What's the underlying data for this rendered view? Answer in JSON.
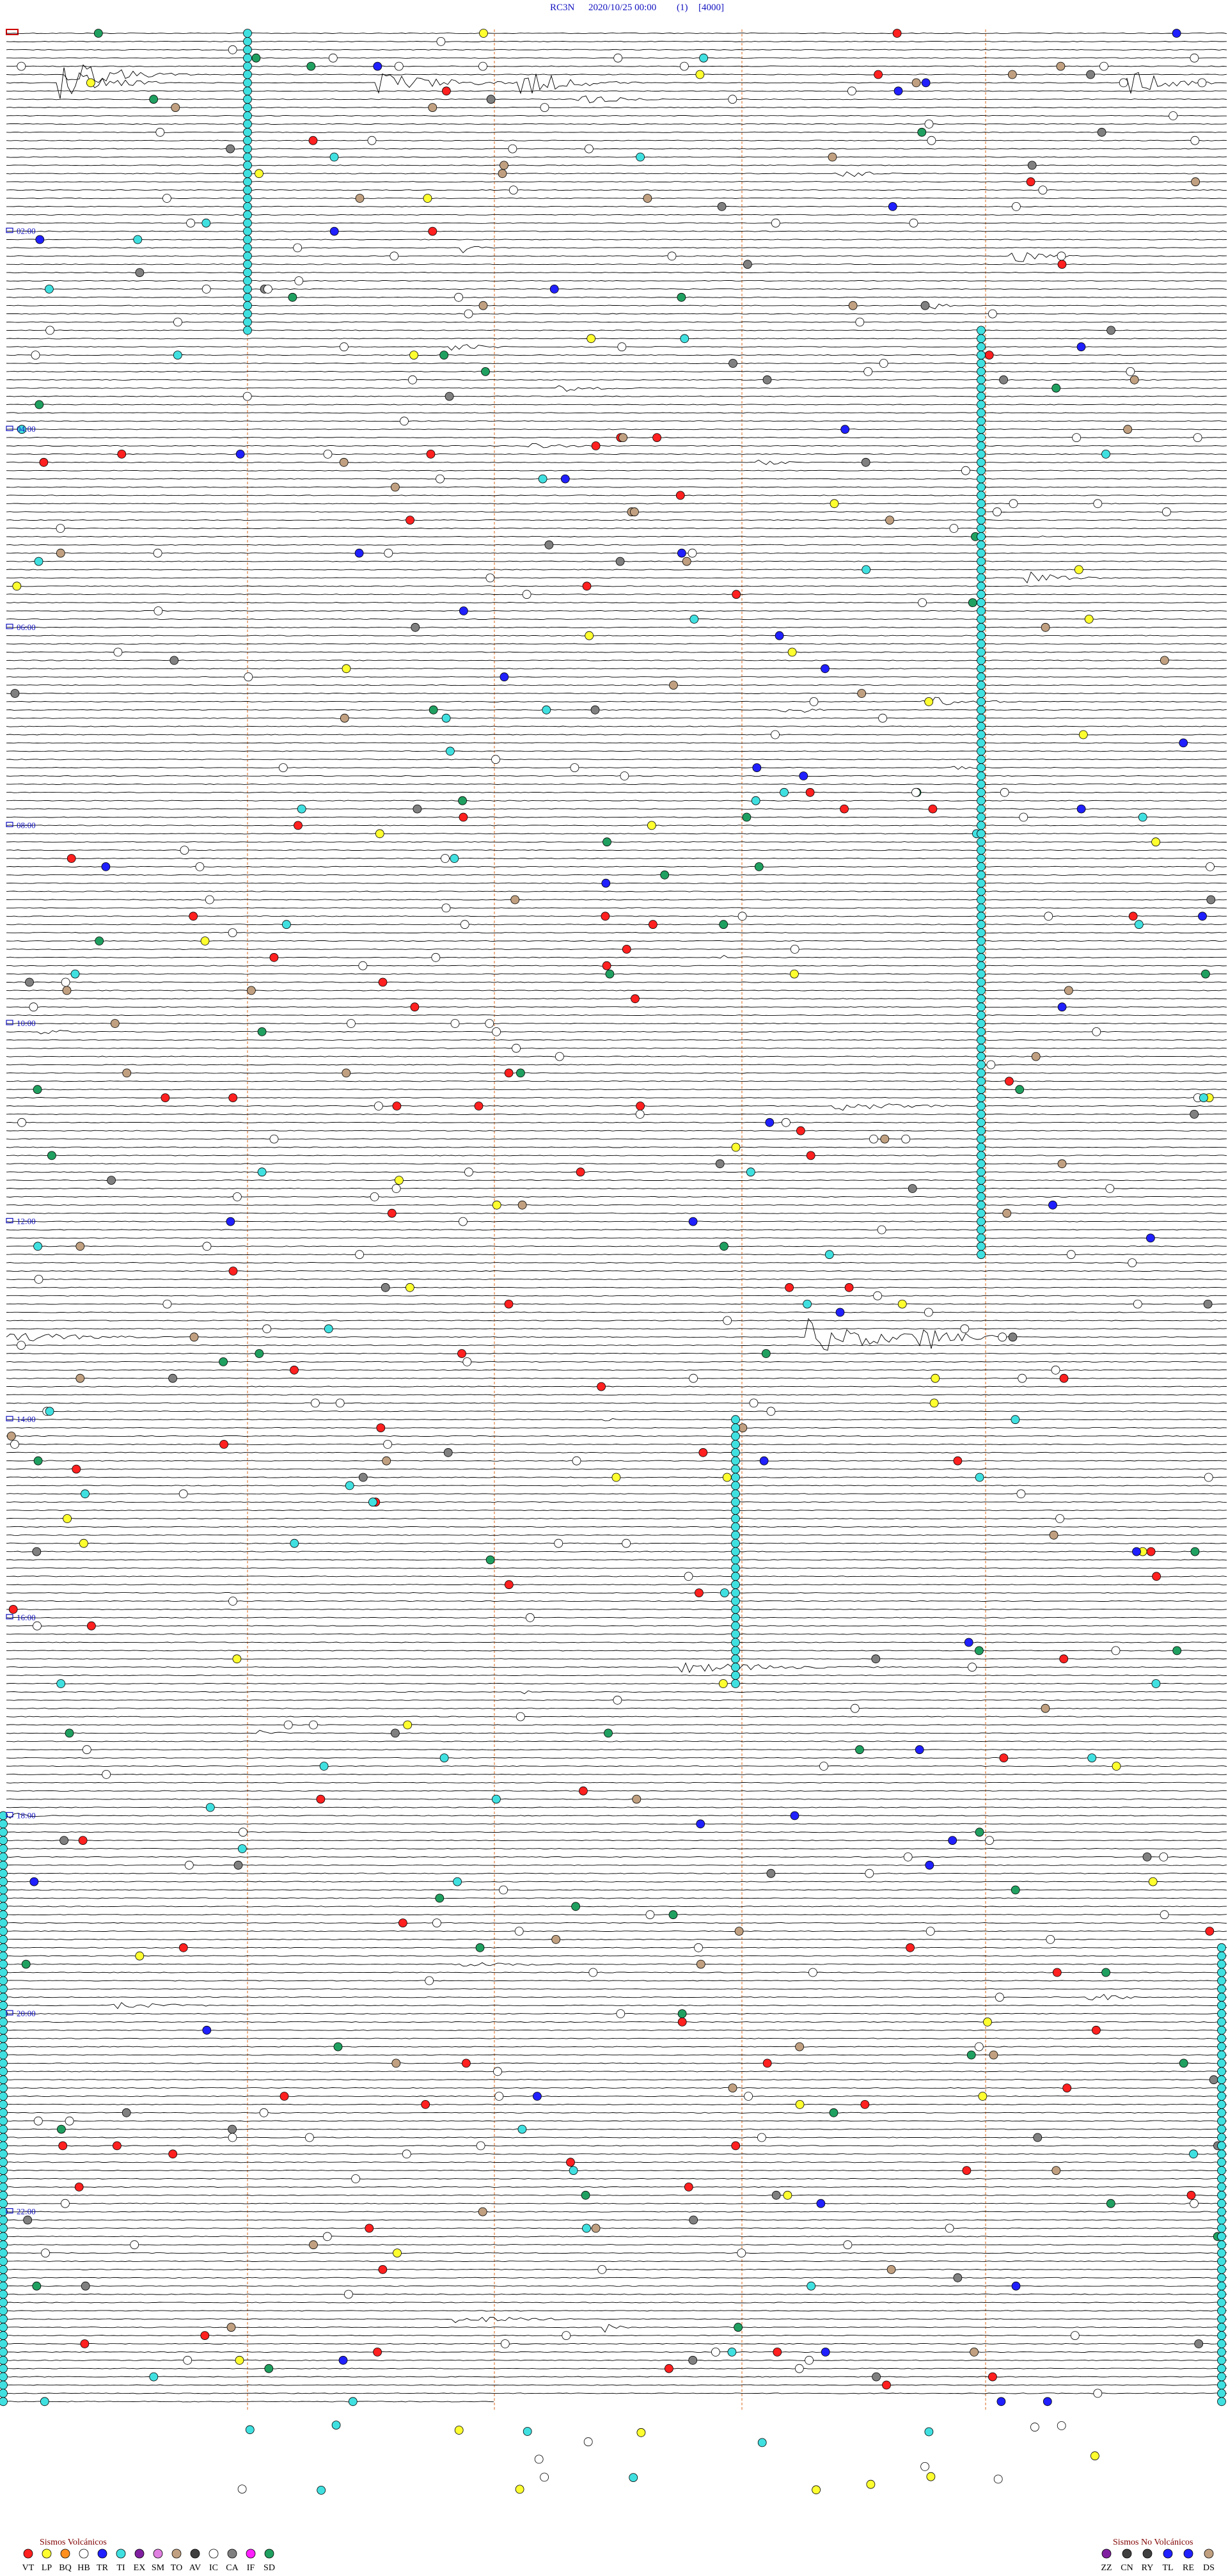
{
  "header": {
    "station": "RC3N",
    "datetime": "2020/10/25 00:00",
    "channel": "(1)",
    "scale": "[4000]"
  },
  "time_labels": [
    "02:00",
    "04:00",
    "06:00",
    "08:00",
    "10:00",
    "12:00",
    "14:00",
    "16:00",
    "18:00",
    "20:00",
    "22:00"
  ],
  "legend": {
    "volcanic": {
      "title": "Sismos Volcánicos",
      "codes": [
        "VT",
        "LP",
        "BQ",
        "HB",
        "TR",
        "TI",
        "EX",
        "SM",
        "TO",
        "AV",
        "IC",
        "CA",
        "IF",
        "SD"
      ]
    },
    "non_volcanic": {
      "title": "Sismos No Volcánicos",
      "codes": [
        "ZZ",
        "CN",
        "RY",
        "TL",
        "RE",
        "DS"
      ]
    }
  }
}
